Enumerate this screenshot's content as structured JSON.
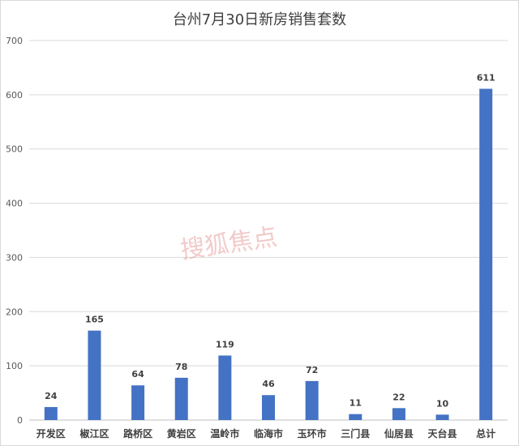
{
  "chart_data": {
    "type": "bar",
    "title": "台州7月30日新房销售套数",
    "categories": [
      "开发区",
      "椒江区",
      "路桥区",
      "黄岩区",
      "温岭市",
      "临海市",
      "玉环市",
      "三门县",
      "仙居县",
      "天台县",
      "总计"
    ],
    "values": [
      24,
      165,
      64,
      78,
      119,
      46,
      72,
      11,
      22,
      10,
      611
    ],
    "ylim": [
      0,
      700
    ],
    "yticks": [
      0,
      100,
      200,
      300,
      400,
      500,
      600,
      700
    ],
    "grid": true,
    "legend": "none",
    "bar_color": "#4472c4"
  },
  "watermark": "搜狐焦点"
}
